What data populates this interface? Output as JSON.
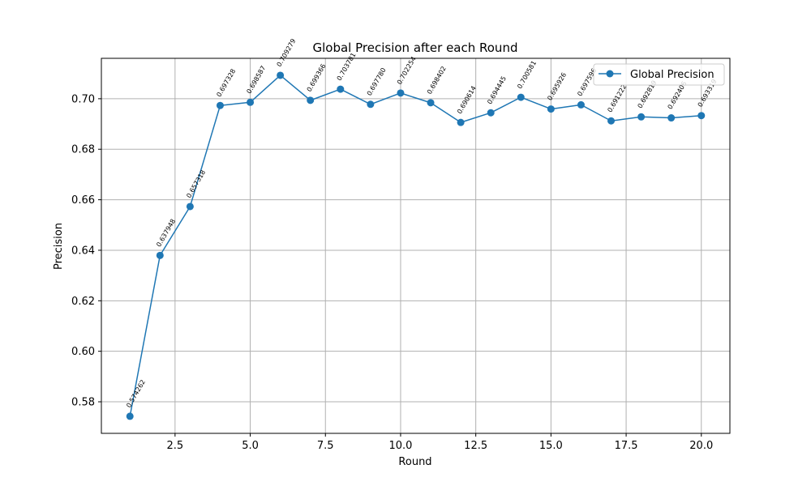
{
  "chart_data": {
    "type": "line",
    "title": "Global Precision after each Round",
    "xlabel": "Round",
    "ylabel": "Precision",
    "xlim": [
      0.05,
      20.95
    ],
    "ylim": [
      0.5675,
      0.716
    ],
    "xticks": [
      2.5,
      5.0,
      7.5,
      10.0,
      12.5,
      15.0,
      17.5,
      20.0
    ],
    "xtick_labels": [
      "2.5",
      "5.0",
      "7.5",
      "10.0",
      "12.5",
      "15.0",
      "17.5",
      "20.0"
    ],
    "yticks": [
      0.58,
      0.6,
      0.62,
      0.64,
      0.66,
      0.68,
      0.7
    ],
    "ytick_labels": [
      "0.58",
      "0.60",
      "0.62",
      "0.64",
      "0.66",
      "0.68",
      "0.70"
    ],
    "grid": true,
    "legend_position": "top-right",
    "series": [
      {
        "name": "Global Precision",
        "color": "#1f77b4",
        "marker": "circle",
        "x": [
          1,
          2,
          3,
          4,
          5,
          6,
          7,
          8,
          9,
          10,
          11,
          12,
          13,
          14,
          15,
          16,
          17,
          18,
          19,
          20
        ],
        "values": [
          0.574262,
          0.637948,
          0.657318,
          0.697328,
          0.698587,
          0.709279,
          0.699366,
          0.703781,
          0.69778,
          0.702254,
          0.698402,
          0.690614,
          0.694445,
          0.700581,
          0.695926,
          0.697596,
          0.691222,
          0.692819,
          0.692406,
          0.693319
        ],
        "data_labels": [
          "0.574262",
          "0.637948",
          "0.657318",
          "0.697328",
          "0.698587",
          "0.709279",
          "0.699366",
          "0.703781",
          "0.697780",
          "0.702254",
          "0.698402",
          "0.690614",
          "0.694445",
          "0.700581",
          "0.695926",
          "0.697596",
          "0.691222",
          "0.692819",
          "0.692406",
          "0.693319"
        ]
      }
    ]
  }
}
